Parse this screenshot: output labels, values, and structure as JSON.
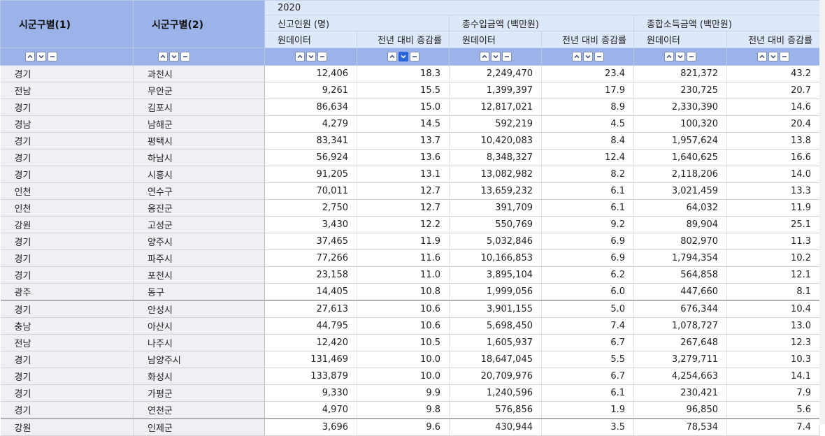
{
  "header": {
    "dim1_label": "시군구별(1)",
    "dim2_label": "시군구별(2)",
    "year": "2020",
    "groups": [
      "신고인원 (명)",
      "총수입금액 (백만원)",
      "종합소득금액 (백만원)"
    ],
    "sub_cols": [
      "원데이터",
      "전년 대비 증감률",
      "원데이터",
      "전년 대비 증감률",
      "원데이터",
      "전년 대비 증감률"
    ]
  },
  "controls": {
    "icons": [
      "chevron-up-icon",
      "chevron-down-icon",
      "minus-icon"
    ],
    "active_sort_column": "신고인원 전년 대비 증감률",
    "active_sort_direction": "descending",
    "active_color": "#2a66d9"
  },
  "rows": [
    [
      "경기",
      "과천시",
      "12,406",
      "18.3",
      "2,249,470",
      "23.4",
      "821,372",
      "43.2"
    ],
    [
      "전남",
      "무안군",
      "9,261",
      "15.5",
      "1,399,397",
      "17.9",
      "230,725",
      "20.7"
    ],
    [
      "경기",
      "김포시",
      "86,634",
      "15.0",
      "12,817,021",
      "8.9",
      "2,330,390",
      "14.6"
    ],
    [
      "경남",
      "남해군",
      "4,279",
      "14.5",
      "592,219",
      "4.5",
      "100,320",
      "20.4"
    ],
    [
      "경기",
      "평택시",
      "83,341",
      "13.7",
      "10,420,083",
      "8.4",
      "1,957,624",
      "13.8"
    ],
    [
      "경기",
      "하남시",
      "56,924",
      "13.6",
      "8,348,327",
      "12.4",
      "1,640,625",
      "16.6"
    ],
    [
      "경기",
      "시흥시",
      "91,205",
      "13.1",
      "13,082,982",
      "8.2",
      "2,118,206",
      "14.0"
    ],
    [
      "인천",
      "연수구",
      "70,011",
      "12.7",
      "13,659,232",
      "6.1",
      "3,021,459",
      "13.3"
    ],
    [
      "인천",
      "옹진군",
      "2,750",
      "12.7",
      "391,709",
      "6.1",
      "64,032",
      "11.9"
    ],
    [
      "강원",
      "고성군",
      "3,430",
      "12.2",
      "550,769",
      "9.2",
      "89,904",
      "25.1"
    ],
    [
      "경기",
      "양주시",
      "37,465",
      "11.9",
      "5,032,846",
      "6.9",
      "802,970",
      "11.3"
    ],
    [
      "경기",
      "파주시",
      "77,266",
      "11.6",
      "10,166,853",
      "6.9",
      "1,794,354",
      "10.2"
    ],
    [
      "경기",
      "포천시",
      "23,158",
      "11.0",
      "3,895,104",
      "6.2",
      "564,858",
      "12.1"
    ],
    [
      "광주",
      "동구",
      "14,405",
      "10.8",
      "1,999,056",
      "6.0",
      "447,660",
      "8.1"
    ],
    [
      "경기",
      "안성시",
      "27,613",
      "10.6",
      "3,901,155",
      "5.0",
      "676,344",
      "10.4"
    ],
    [
      "충남",
      "아산시",
      "44,795",
      "10.6",
      "5,698,450",
      "7.4",
      "1,078,727",
      "13.0"
    ],
    [
      "전남",
      "나주시",
      "12,420",
      "10.5",
      "1,605,937",
      "6.7",
      "267,648",
      "12.3"
    ],
    [
      "경기",
      "남양주시",
      "131,469",
      "10.0",
      "18,647,045",
      "5.5",
      "3,279,711",
      "10.3"
    ],
    [
      "경기",
      "화성시",
      "133,879",
      "10.0",
      "20,709,976",
      "6.7",
      "4,254,663",
      "14.1"
    ],
    [
      "경기",
      "가평군",
      "9,330",
      "9.9",
      "1,240,596",
      "6.1",
      "230,421",
      "7.9"
    ],
    [
      "경기",
      "연천군",
      "4,970",
      "9.8",
      "576,856",
      "1.9",
      "96,850",
      "5.6"
    ],
    [
      "강원",
      "인제군",
      "3,696",
      "9.6",
      "430,944",
      "3.5",
      "78,534",
      "7.4"
    ]
  ]
}
